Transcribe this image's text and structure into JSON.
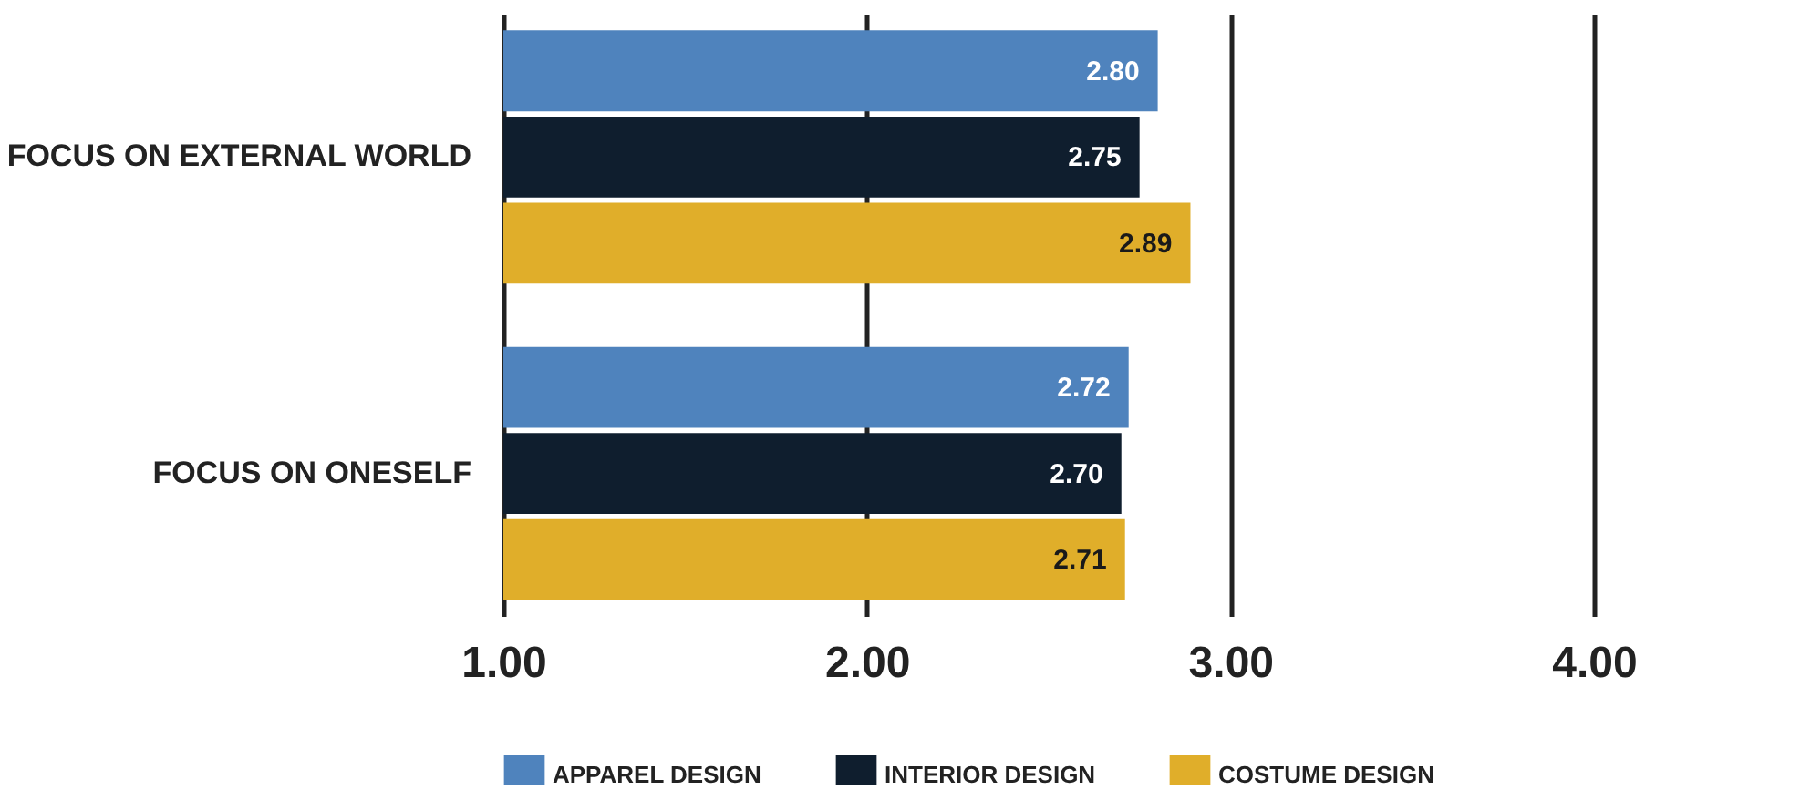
{
  "chart_data": {
    "type": "bar",
    "orientation": "horizontal",
    "categories": [
      "FOCUS ON EXTERNAL WORLD",
      "FOCUS ON ONESELF"
    ],
    "series": [
      {
        "name": "APPAREL DESIGN",
        "color": "#4f83bd",
        "values": [
          2.8,
          2.72
        ],
        "value_labels": [
          "2.80",
          "2.72"
        ]
      },
      {
        "name": "INTERIOR DESIGN",
        "color": "#0f1e2e",
        "values": [
          2.75,
          2.7
        ],
        "value_labels": [
          "2.75",
          "2.70"
        ]
      },
      {
        "name": "COSTUME DESIGN",
        "color": "#e0ae2a",
        "values": [
          2.89,
          2.71
        ],
        "value_labels": [
          "2.89",
          "2.71"
        ]
      }
    ],
    "xlim": [
      1,
      4
    ],
    "xticks": [
      {
        "value": 1,
        "label": "1.00"
      },
      {
        "value": 2,
        "label": "2.00"
      },
      {
        "value": 3,
        "label": "3.00"
      },
      {
        "value": 4,
        "label": "4.00"
      }
    ],
    "grid": "x",
    "legend": "bottom"
  }
}
